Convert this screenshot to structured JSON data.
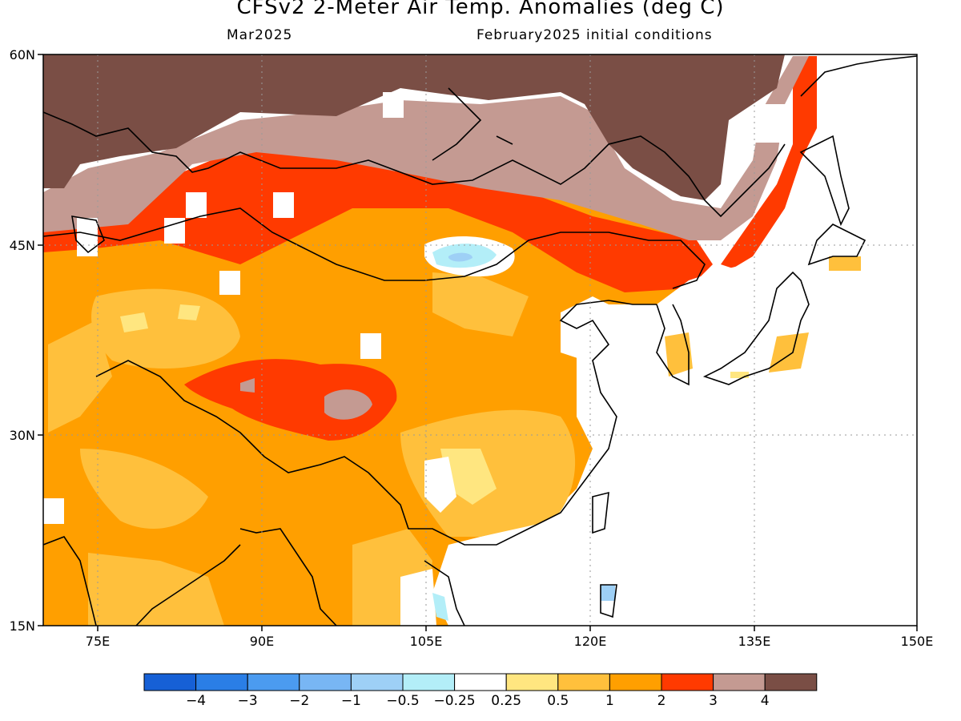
{
  "title": "CFSv2 2-Meter Air Temp. Anomalies (deg C)",
  "subtitle_left": "Mar2025",
  "subtitle_right": "February2025 initial conditions",
  "axes": {
    "lat_labels": [
      "60N",
      "45N",
      "30N",
      "15N"
    ],
    "lon_labels": [
      "75E",
      "90E",
      "105E",
      "120E",
      "135E",
      "150E"
    ],
    "lat_range": [
      15,
      60
    ],
    "lon_range": [
      70,
      150
    ]
  },
  "colorbar": {
    "colors": [
      "#1660d6",
      "#2a7ee6",
      "#4b9bf0",
      "#78b6f4",
      "#9ed0f6",
      "#b3eef8",
      "#ffffff",
      "#ffe680",
      "#ffc03c",
      "#ff9f00",
      "#ff3a00",
      "#c49a92",
      "#7a4e45"
    ],
    "labels": [
      "−4",
      "−3",
      "−2",
      "−1",
      "−0.5",
      "−0.25",
      "0.25",
      "0.5",
      "1",
      "2",
      "3",
      "4"
    ]
  },
  "palette": {
    "above_4": "#7a4e45",
    "3_to_4": "#c49a92",
    "2_to_3": "#ff3a00",
    "1_to_2": "#ff9f00",
    "0.5_to_1": "#ffc03c",
    "0.25_to_0.5": "#ffe680",
    "neutral": "#ffffff",
    "minus_0.5": "#9ed0f6",
    "minus_0.25": "#b3eef8"
  }
}
